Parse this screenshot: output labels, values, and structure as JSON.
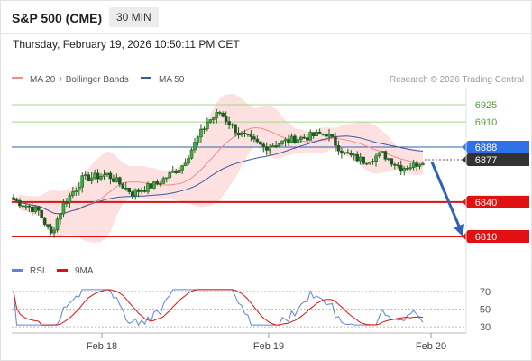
{
  "header": {
    "title": "S&P 500 (CME)",
    "timeframe": "30 MIN",
    "datetime": "Thursday, February 19, 2026 10:50:11 PM CET"
  },
  "legend": {
    "ma20": "MA 20 + Bollinger Bands",
    "ma50": "MA 50",
    "credit": "Research © 2026 Trading Central",
    "rsi": "RSI",
    "rsi_ma": "9MA"
  },
  "colors": {
    "bollinger_fill": "#fde1e1",
    "ma20": "#f08c8c",
    "ma50": "#3d5a9e",
    "green_level": "#a8d38b",
    "blue_level": "#2e62b8",
    "red_level": "#e11111",
    "current_badge": "#333333",
    "blue_badge": "#2f72e8",
    "arrow": "#2e62b8",
    "rsi": "#5a86d8",
    "rsi_ma": "#e11111"
  },
  "chart_data": [
    {
      "type": "candlestick",
      "series": [
        {
          "name": "MA 20 + Bollinger Bands"
        },
        {
          "name": "MA 50"
        }
      ],
      "ylim": [
        6795,
        6940
      ],
      "x_ticks": [
        "Feb 18",
        "Feb 19",
        "Feb 20"
      ],
      "price_levels": [
        {
          "value": 6925,
          "label": "6925",
          "style": "green"
        },
        {
          "value": 6910,
          "label": "6910",
          "style": "green"
        },
        {
          "value": 6888,
          "label": "6888",
          "style": "blue"
        },
        {
          "value": 6877,
          "label": "6877",
          "style": "current"
        },
        {
          "value": 6840,
          "label": "6840",
          "style": "red"
        },
        {
          "value": 6810,
          "label": "6810",
          "style": "red"
        }
      ],
      "forecast_arrow": {
        "from": 6875,
        "to": 6810
      }
    },
    {
      "type": "line",
      "series": [
        {
          "name": "RSI"
        },
        {
          "name": "9MA"
        }
      ],
      "ylim": [
        25,
        80
      ],
      "y_ticks": [
        70,
        50,
        30
      ]
    }
  ]
}
